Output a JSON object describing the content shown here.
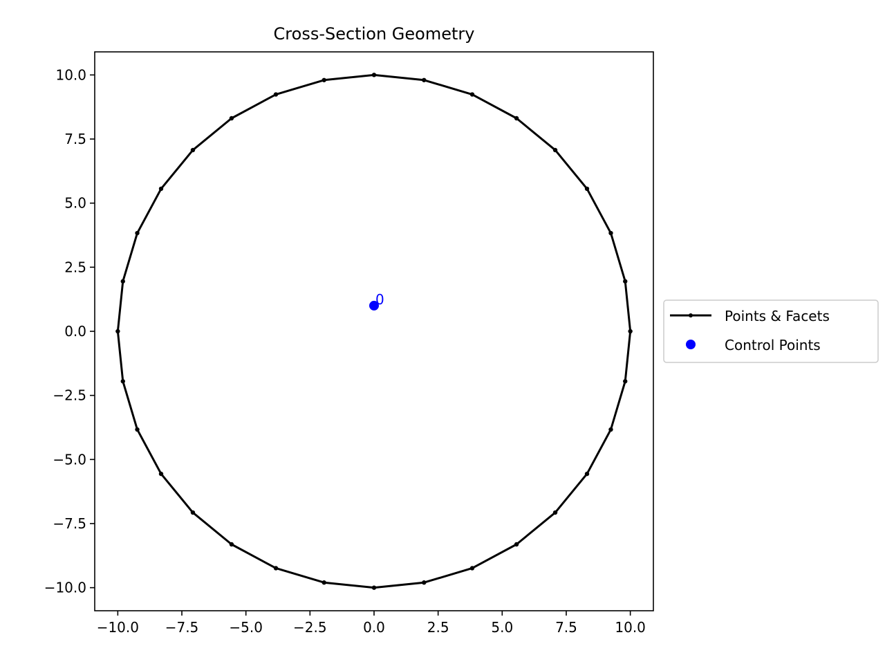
{
  "chart_data": {
    "type": "line",
    "title": "Cross-Section Geometry",
    "xlabel": "",
    "ylabel": "",
    "xlim": [
      -10.9,
      10.9
    ],
    "ylim": [
      -10.9,
      10.9
    ],
    "xticks": [
      -10.0,
      -7.5,
      -5.0,
      -2.5,
      0.0,
      2.5,
      5.0,
      7.5,
      10.0
    ],
    "xtick_labels": [
      "−10.0",
      "−7.5",
      "−5.0",
      "−2.5",
      "0.0",
      "2.5",
      "5.0",
      "7.5",
      "10.0"
    ],
    "yticks": [
      10.0,
      7.5,
      5.0,
      2.5,
      0.0,
      -2.5,
      -5.0,
      -7.5,
      -10.0
    ],
    "ytick_labels": [
      "10.0",
      "7.5",
      "5.0",
      "2.5",
      "0.0",
      "−2.5",
      "−5.0",
      "−7.5",
      "−10.0"
    ],
    "grid": false,
    "legend_position": "center-right outside",
    "series": [
      {
        "name": "Points & Facets",
        "color": "#000000",
        "marker": "dot",
        "closed": true,
        "x": [
          10.0,
          9.8,
          9.24,
          8.31,
          7.07,
          5.56,
          3.83,
          1.95,
          0.0,
          -1.95,
          -3.83,
          -5.56,
          -7.07,
          -8.31,
          -9.24,
          -9.8,
          -10.0,
          -9.8,
          -9.24,
          -8.31,
          -7.07,
          -5.56,
          -3.83,
          -1.95,
          0.0,
          1.95,
          3.83,
          5.56,
          7.07,
          8.31,
          9.24,
          9.8
        ],
        "y": [
          0.0,
          1.95,
          3.83,
          5.56,
          7.07,
          8.31,
          9.24,
          9.8,
          10.0,
          9.8,
          9.24,
          8.31,
          7.07,
          5.56,
          3.83,
          1.95,
          0.0,
          -1.95,
          -3.83,
          -5.56,
          -7.07,
          -8.31,
          -9.24,
          -9.8,
          -10.0,
          -9.8,
          -9.24,
          -8.31,
          -7.07,
          -5.56,
          -3.83,
          -1.95
        ]
      },
      {
        "name": "Control Points",
        "color": "#0000ff",
        "marker": "circle",
        "x": [
          0.0
        ],
        "y": [
          1.0
        ],
        "labels": [
          "0"
        ]
      }
    ]
  }
}
